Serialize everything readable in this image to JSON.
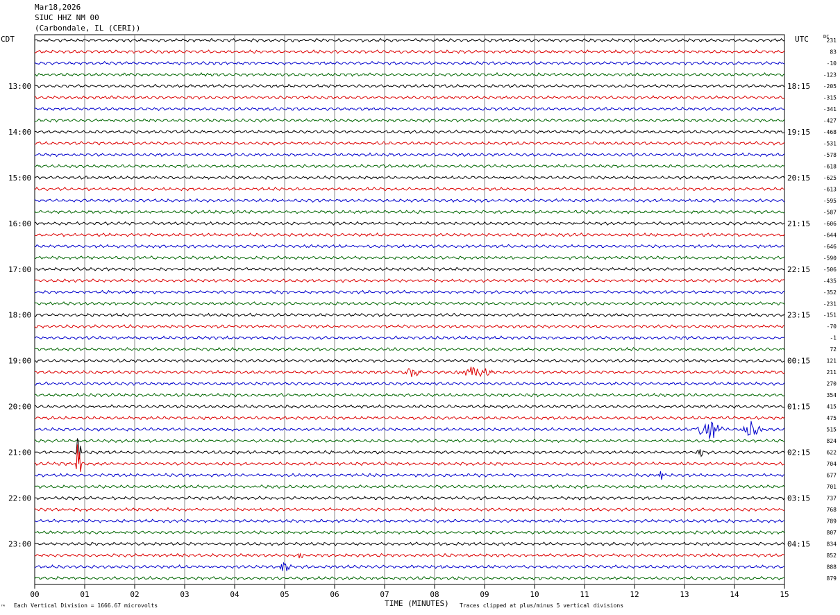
{
  "header": {
    "date": "Mar18,2026",
    "station": "SIUC HHZ NM 00",
    "location": "(Carbondale, IL (CERI))"
  },
  "left_axis_label": "CDT",
  "right_axis_label": "UTC",
  "dc_label": "DC",
  "footer": {
    "scale": "Each Vertical Division = 1666.67 microvolts",
    "xlabel": "TIME (MINUTES)",
    "clip": "Traces clipped at plus/minus 5 vertical divisions",
    "mark": "™"
  },
  "colors": {
    "black": "#000000",
    "red": "#dd0000",
    "blue": "#0000cc",
    "green": "#006600",
    "grid": "#888888"
  },
  "chart_data": {
    "type": "line",
    "title": "SIUC HHZ NM 00",
    "xlabel": "TIME (MINUTES)",
    "xlim": [
      0,
      15
    ],
    "x_ticks": [
      "00",
      "01",
      "02",
      "03",
      "04",
      "05",
      "06",
      "07",
      "08",
      "09",
      "10",
      "11",
      "12",
      "13",
      "14",
      "15"
    ],
    "trace_minutes": 15,
    "trace_count": 48,
    "trace_colors_cycle": [
      "black",
      "red",
      "blue",
      "green"
    ],
    "left_time_labels": [
      {
        "row": 4,
        "label": "13:00"
      },
      {
        "row": 8,
        "label": "14:00"
      },
      {
        "row": 12,
        "label": "15:00"
      },
      {
        "row": 16,
        "label": "16:00"
      },
      {
        "row": 20,
        "label": "17:00"
      },
      {
        "row": 24,
        "label": "18:00"
      },
      {
        "row": 28,
        "label": "19:00"
      },
      {
        "row": 32,
        "label": "20:00"
      },
      {
        "row": 36,
        "label": "21:00"
      },
      {
        "row": 40,
        "label": "22:00"
      },
      {
        "row": 44,
        "label": "23:00"
      }
    ],
    "right_time_labels": [
      {
        "row": 4,
        "label": "18:15"
      },
      {
        "row": 8,
        "label": "19:15"
      },
      {
        "row": 12,
        "label": "20:15"
      },
      {
        "row": 16,
        "label": "21:15"
      },
      {
        "row": 20,
        "label": "22:15"
      },
      {
        "row": 24,
        "label": "23:15"
      },
      {
        "row": 28,
        "label": "00:15"
      },
      {
        "row": 32,
        "label": "01:15"
      },
      {
        "row": 36,
        "label": "02:15"
      },
      {
        "row": 40,
        "label": "03:15"
      },
      {
        "row": 44,
        "label": "04:15"
      }
    ],
    "dc_offsets": [
      "231",
      "83",
      "-10",
      "-123",
      "-205",
      "-315",
      "-341",
      "-427",
      "-468",
      "-531",
      "-578",
      "-618",
      "-625",
      "-613",
      "-595",
      "-587",
      "-606",
      "-644",
      "-646",
      "-590",
      "-506",
      "-435",
      "-352",
      "-231",
      "-151",
      "-70",
      "-1",
      "72",
      "121",
      "211",
      "270",
      "354",
      "415",
      "475",
      "515",
      "824",
      "622",
      "704",
      "677",
      "701",
      "737",
      "768",
      "789",
      "807",
      "834",
      "852",
      "888",
      "879"
    ],
    "events": [
      {
        "row": 29,
        "minute_start": 7.4,
        "minute_end": 7.7,
        "amplitude": 0.45,
        "description": "burst"
      },
      {
        "row": 29,
        "minute_start": 8.5,
        "minute_end": 9.1,
        "amplitude": 0.5,
        "description": "burst"
      },
      {
        "row": 34,
        "minute_start": 13.3,
        "minute_end": 13.7,
        "amplitude": 1.1,
        "description": "burst"
      },
      {
        "row": 34,
        "minute_start": 14.2,
        "minute_end": 14.5,
        "amplitude": 1.0,
        "description": "burst"
      },
      {
        "row": 36,
        "minute_start": 0.85,
        "minute_end": 0.9,
        "amplitude": 2.6,
        "description": "spike"
      },
      {
        "row": 37,
        "minute_start": 0.85,
        "minute_end": 0.9,
        "amplitude": 2.6,
        "description": "spike"
      },
      {
        "row": 36,
        "minute_start": 13.3,
        "minute_end": 13.35,
        "amplitude": 0.9,
        "description": "spike"
      },
      {
        "row": 38,
        "minute_start": 12.5,
        "minute_end": 12.55,
        "amplitude": 0.7,
        "description": "spike"
      },
      {
        "row": 45,
        "minute_start": 5.3,
        "minute_end": 5.35,
        "amplitude": 0.6,
        "description": "spike"
      },
      {
        "row": 46,
        "minute_start": 4.9,
        "minute_end": 5.1,
        "amplitude": 0.5,
        "description": "burst"
      }
    ]
  }
}
